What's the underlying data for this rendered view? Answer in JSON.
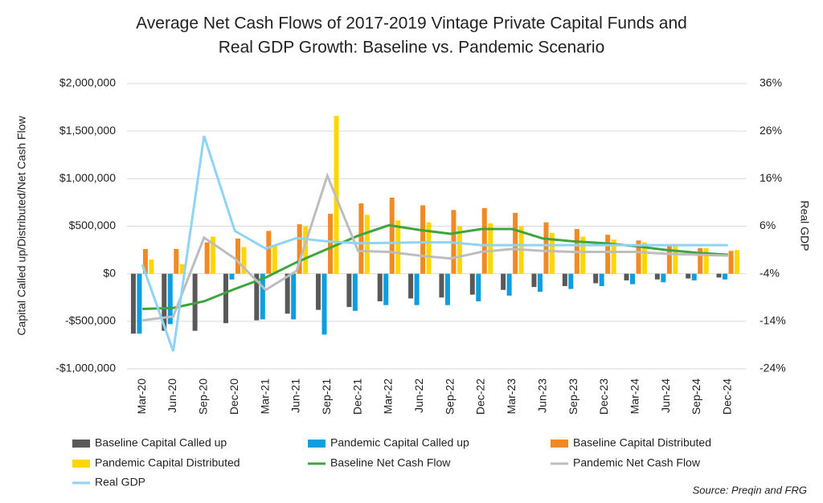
{
  "chart_data": {
    "type": "combo",
    "title": [
      "Average Net Cash Flows of 2017-2019 Vintage Private Capital Funds and",
      "Real GDP Growth: Baseline vs. Pandemic Scenario"
    ],
    "y_label": "Capital Called up/Distributed/Net Cash Flow",
    "y2_label": "Real GDP",
    "source": "Source: Preqin and FRG",
    "categories": [
      "Mar-20",
      "Jun-20",
      "Sep-20",
      "Dec-20",
      "Mar-21",
      "Jun-21",
      "Sep-21",
      "Dec-21",
      "Mar-22",
      "Jun-22",
      "Sep-22",
      "Dec-22",
      "Mar-23",
      "Jun-23",
      "Sep-23",
      "Dec-23",
      "Mar-24",
      "Jun-24",
      "Sep-24",
      "Dec-24"
    ],
    "ylim": [
      -1000000,
      2000000
    ],
    "yticks": [
      {
        "value": -1000000,
        "label": "-$1,000,000"
      },
      {
        "value": -500000,
        "label": "-$500,000"
      },
      {
        "value": 0,
        "label": "$0"
      },
      {
        "value": 500000,
        "label": "$500,000"
      },
      {
        "value": 1000000,
        "label": "$1,000,000"
      },
      {
        "value": 1500000,
        "label": "$1,500,000"
      },
      {
        "value": 2000000,
        "label": "$2,000,000"
      }
    ],
    "y2lim": [
      -24,
      36
    ],
    "y2ticks": [
      {
        "value": -24,
        "label": "-24%"
      },
      {
        "value": -14,
        "label": "-14%"
      },
      {
        "value": -4,
        "label": "-4%"
      },
      {
        "value": 6,
        "label": "6%"
      },
      {
        "value": 16,
        "label": "16%"
      },
      {
        "value": 26,
        "label": "26%"
      },
      {
        "value": 36,
        "label": "36%"
      }
    ],
    "series": [
      {
        "name": "Baseline Capital Called up",
        "type": "bar",
        "color": "#595959",
        "values": [
          -630000,
          -600000,
          -600000,
          -520000,
          -490000,
          -420000,
          -380000,
          -350000,
          -290000,
          -260000,
          -250000,
          -220000,
          -170000,
          -140000,
          -130000,
          -100000,
          -70000,
          -60000,
          -50000,
          -40000
        ]
      },
      {
        "name": "Pandemic Capital Called up",
        "type": "bar",
        "color": "#0b9ee0",
        "values": [
          -630000,
          -530000,
          0,
          -60000,
          -480000,
          -480000,
          -640000,
          -390000,
          -330000,
          -330000,
          -330000,
          -290000,
          -230000,
          -190000,
          -160000,
          -130000,
          -110000,
          -90000,
          -70000,
          -60000
        ]
      },
      {
        "name": "Baseline Capital Distributed",
        "type": "bar",
        "color": "#f28a24",
        "values": [
          260000,
          260000,
          330000,
          370000,
          450000,
          520000,
          630000,
          740000,
          800000,
          720000,
          670000,
          690000,
          640000,
          540000,
          470000,
          410000,
          350000,
          300000,
          270000,
          240000
        ]
      },
      {
        "name": "Pandemic Capital Distributed",
        "type": "bar",
        "color": "#ffd700",
        "values": [
          150000,
          100000,
          390000,
          280000,
          300000,
          500000,
          1660000,
          620000,
          560000,
          540000,
          500000,
          530000,
          500000,
          430000,
          390000,
          360000,
          330000,
          290000,
          270000,
          250000
        ]
      },
      {
        "name": "Baseline Net Cash Flow",
        "type": "line",
        "color": "#3ea53e",
        "values": [
          -370000,
          -360000,
          -290000,
          -160000,
          -40000,
          120000,
          260000,
          400000,
          510000,
          460000,
          420000,
          470000,
          470000,
          370000,
          340000,
          320000,
          290000,
          250000,
          220000,
          200000
        ]
      },
      {
        "name": "Pandemic Net Cash Flow",
        "type": "line",
        "color": "#bdbdbd",
        "values": [
          -490000,
          -450000,
          380000,
          160000,
          -170000,
          30000,
          1030000,
          240000,
          230000,
          190000,
          160000,
          230000,
          260000,
          240000,
          230000,
          230000,
          230000,
          210000,
          200000,
          190000
        ]
      },
      {
        "name": "Real GDP",
        "type": "line",
        "axis": "y2",
        "color": "#8fd4f5",
        "values": [
          -2.1,
          -20.3,
          25,
          5,
          1.3,
          3.5,
          2.8,
          2.4,
          2.5,
          2.6,
          2.6,
          2.0,
          2.0,
          2.0,
          2.0,
          2.0,
          2.0,
          2.0,
          2.0,
          2.0
        ]
      }
    ]
  }
}
